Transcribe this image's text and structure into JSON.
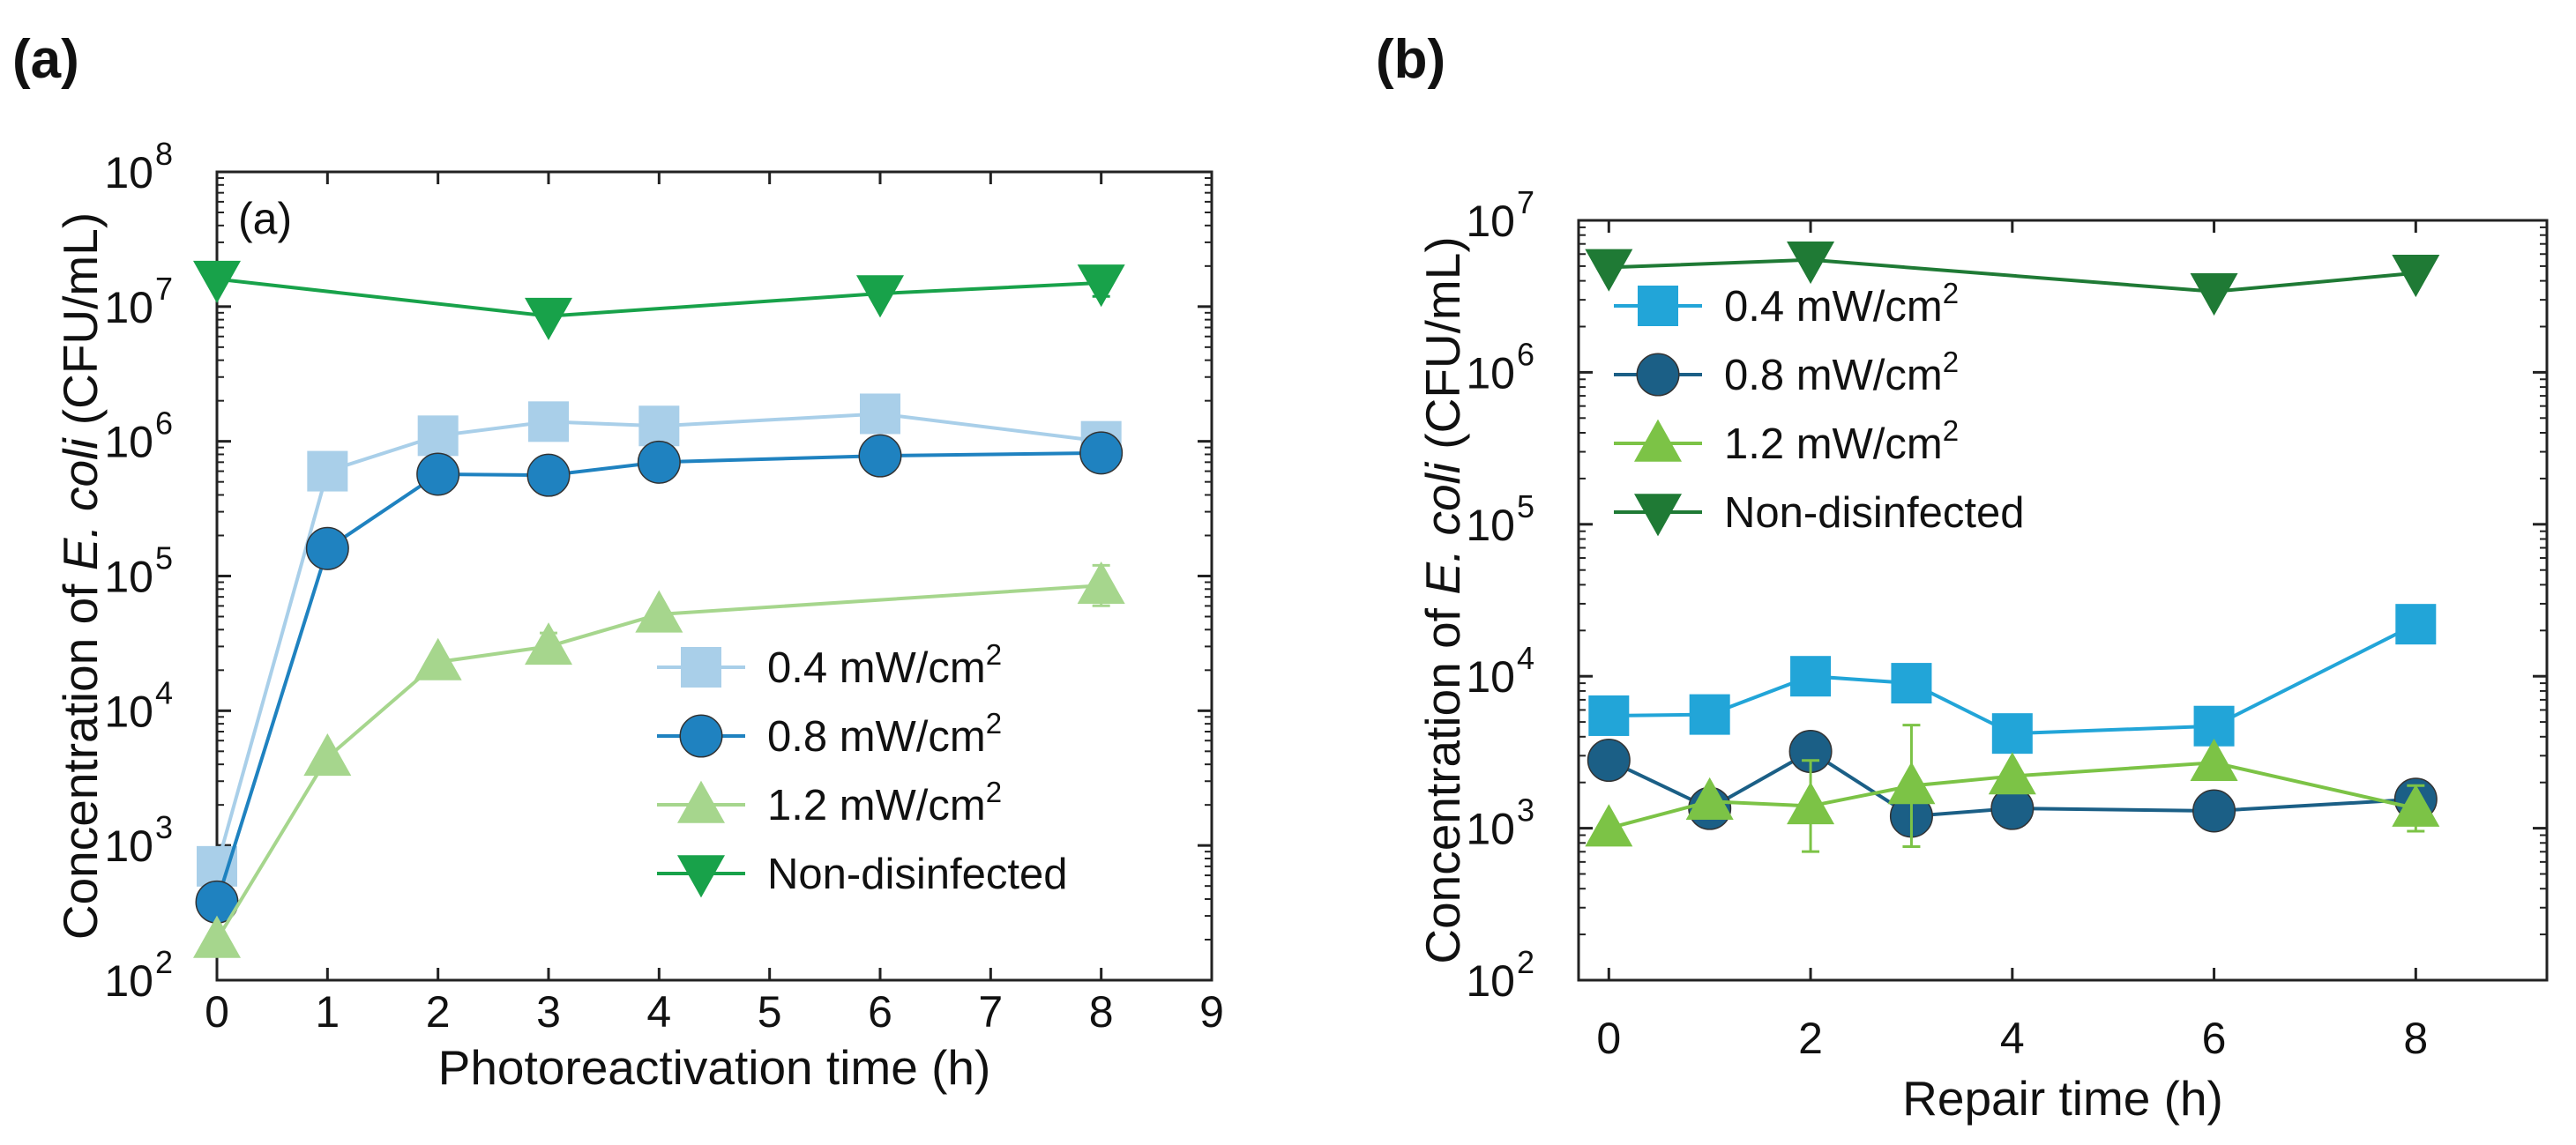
{
  "panel_labels": {
    "a": "(a)",
    "b": "(b)"
  },
  "chart_data": [
    {
      "id": "a",
      "type": "line",
      "inner_label": "(a)",
      "xlabel": "Photoreactivation time (h)",
      "ylabel": {
        "pre": "Concentration of ",
        "italic": "E. coli",
        "post": " (CFU/mL)"
      },
      "yscale": "log",
      "xlim": [
        0,
        9
      ],
      "ylim": [
        100,
        100000000
      ],
      "xticks": [
        "0",
        "1",
        "2",
        "3",
        "4",
        "5",
        "6",
        "7",
        "8",
        "9"
      ],
      "yticks": [
        {
          "base": "10",
          "exp": "2"
        },
        {
          "base": "10",
          "exp": "3"
        },
        {
          "base": "10",
          "exp": "4"
        },
        {
          "base": "10",
          "exp": "5"
        },
        {
          "base": "10",
          "exp": "6"
        },
        {
          "base": "10",
          "exp": "7"
        },
        {
          "base": "10",
          "exp": "8"
        }
      ],
      "legend_position": "lower-right",
      "series": [
        {
          "name": "0.4 mW/cm",
          "sup": "2",
          "marker": "square",
          "color": "#a9cfe9",
          "x": [
            0,
            1,
            2,
            3,
            4,
            6,
            8
          ],
          "y": [
            700,
            600000,
            1100000,
            1400000,
            1300000,
            1600000,
            1000000
          ],
          "err": [
            0,
            0,
            0,
            0,
            0,
            0,
            0
          ]
        },
        {
          "name": "0.8 mW/cm",
          "sup": "2",
          "marker": "circle",
          "color": "#1f82c0",
          "x": [
            0,
            1,
            2,
            3,
            4,
            6,
            8
          ],
          "y": [
            380,
            160000,
            570000,
            560000,
            700000,
            780000,
            820000
          ],
          "err": [
            0,
            0,
            0.12,
            0,
            0,
            0,
            0
          ]
        },
        {
          "name": "1.2 mW/cm",
          "sup": "2",
          "marker": "triangle-up",
          "color": "#a6d68d",
          "x": [
            0,
            1,
            2,
            3,
            4,
            8
          ],
          "y": [
            200,
            4500,
            23000,
            30000,
            52000,
            85000
          ],
          "err": [
            0,
            0,
            0,
            0.1,
            0,
            0.15
          ]
        },
        {
          "name": "Non-disinfected",
          "sup": "",
          "marker": "triangle-down",
          "color": "#18a24a",
          "x": [
            0,
            3,
            6,
            8
          ],
          "y": [
            16000000,
            8500000,
            12500000,
            15000000
          ],
          "err": [
            0,
            0,
            0,
            0.1
          ]
        }
      ]
    },
    {
      "id": "b",
      "type": "line",
      "inner_label": "",
      "xlabel": "Repair time (h)",
      "ylabel": {
        "pre": "Concentration of ",
        "italic": "E. coli",
        "post": " (CFU/mL)"
      },
      "yscale": "log",
      "xlim": [
        -0.3,
        9.3
      ],
      "ylim": [
        100,
        10000000
      ],
      "xticks": [
        "0",
        "2",
        "4",
        "6",
        "8"
      ],
      "yticks": [
        {
          "base": "10",
          "exp": "2"
        },
        {
          "base": "10",
          "exp": "3"
        },
        {
          "base": "10",
          "exp": "4"
        },
        {
          "base": "10",
          "exp": "5"
        },
        {
          "base": "10",
          "exp": "6"
        },
        {
          "base": "10",
          "exp": "7"
        }
      ],
      "legend_position": "upper-left",
      "series": [
        {
          "name": "0.4 mW/cm",
          "sup": "2",
          "marker": "square",
          "color": "#22a5d8",
          "x": [
            0,
            1,
            2,
            3,
            4,
            6,
            8
          ],
          "y": [
            5500,
            5600,
            10000,
            9000,
            4200,
            4700,
            22000
          ],
          "err": [
            0,
            0.12,
            0.1,
            0,
            0,
            0,
            0
          ]
        },
        {
          "name": "0.8 mW/cm",
          "sup": "2",
          "marker": "circle",
          "color": "#1b5f86",
          "x": [
            0,
            1,
            2,
            3,
            4,
            6,
            8
          ],
          "y": [
            2800,
            1350,
            3200,
            1200,
            1350,
            1300,
            1550
          ],
          "err": [
            0,
            0,
            0,
            0,
            0,
            0,
            0
          ]
        },
        {
          "name": "1.2 mW/cm",
          "sup": "2",
          "marker": "triangle-up",
          "color": "#7cc346",
          "x": [
            0,
            1,
            2,
            3,
            4,
            6,
            8
          ],
          "y": [
            1000,
            1500,
            1400,
            1900,
            2200,
            2700,
            1350
          ],
          "err": [
            0,
            0,
            0.3,
            0.4,
            0,
            0,
            0.15
          ]
        },
        {
          "name": "Non-disinfected",
          "sup": "",
          "marker": "triangle-down",
          "color": "#1f7a35",
          "x": [
            0,
            2,
            6,
            8
          ],
          "y": [
            4900000,
            5500000,
            3400000,
            4500000
          ],
          "err": [
            0,
            0,
            0,
            0
          ]
        }
      ]
    }
  ]
}
